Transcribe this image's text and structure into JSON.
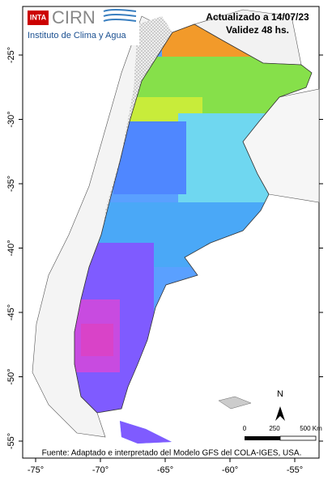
{
  "header": {
    "logo_badge": "INTA",
    "logo_name": "CIRN",
    "institute": "Instituto de Clima y Agua",
    "updated": "Actualizado a 14/07/23",
    "validity": "Validez 48 hs."
  },
  "axes": {
    "lat_ticks": [
      {
        "value": -25,
        "label": "-25°"
      },
      {
        "value": -30,
        "label": "-30°"
      },
      {
        "value": -35,
        "label": "-35°"
      },
      {
        "value": -40,
        "label": "-40°"
      },
      {
        "value": -45,
        "label": "-45°"
      },
      {
        "value": -50,
        "label": "-50°"
      },
      {
        "value": -55,
        "label": "-55°"
      }
    ],
    "lon_ticks": [
      {
        "value": -75,
        "label": "-75°"
      },
      {
        "value": -70,
        "label": "-70°"
      },
      {
        "value": -65,
        "label": "-65°"
      },
      {
        "value": -60,
        "label": "-60°"
      },
      {
        "value": -55,
        "label": "-55°"
      }
    ]
  },
  "north": "N",
  "scale_bar": [
    "0",
    "250",
    "500 Km"
  ],
  "footer": "Fuente: Adaptado e interpretado del Modelo GFS del COLA-IGES, USA."
}
